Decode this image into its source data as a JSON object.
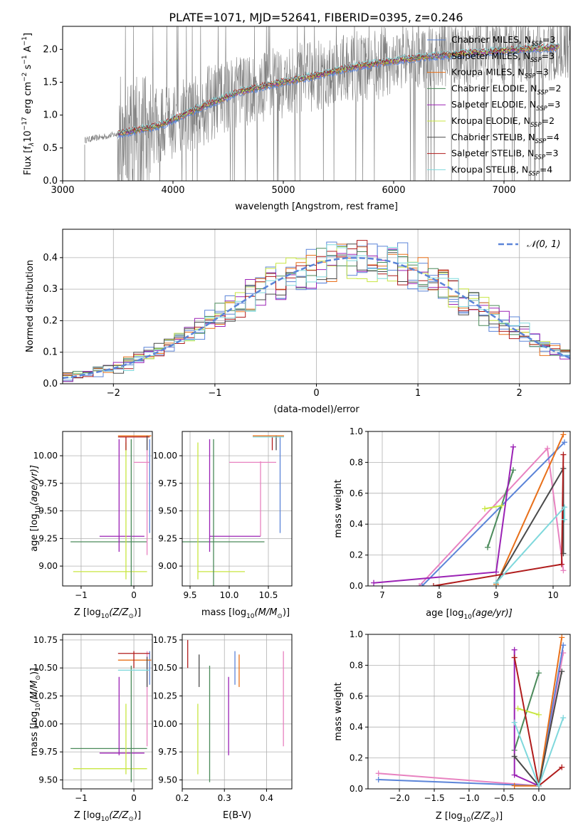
{
  "colors": {
    "Chabrier MILES": "#5b84d8",
    "Salpeter MILES": "#5b84d8",
    "Kroupa MILES": "#e8701a",
    "Chabrier ELODIE": "#4a8a5a",
    "Salpeter ELODIE": "#9b22b5",
    "Kroupa ELODIE": "#c8e640",
    "Chabrier STELIB": "#4a4a4a",
    "Salpeter STELIB": "#b01c1c",
    "Kroupa STELIB": "#7fd8dc",
    "pink": "#e882c0",
    "spectrum": "#7f7f7f",
    "gauss": "#5b84d8"
  },
  "chart_data": [
    {
      "id": "spectrum",
      "type": "line",
      "title": "PLATE=1071, MJD=52641, FIBERID=0395, z=0.246",
      "xlabel": "wavelength [Angstrom, rest frame]",
      "ylabel_main": "Flux [f",
      "ylabel_sub": "λ",
      "ylabel_rest": "10",
      "ylabel_exp1": "−17",
      "ylabel_mid": " erg cm",
      "ylabel_exp2": "−2",
      "ylabel_mid2": " s",
      "ylabel_exp3": "−1",
      "ylabel_mid3": " A",
      "ylabel_exp4": "−1",
      "ylabel_end": "]",
      "xlim": [
        3000,
        7600
      ],
      "ylim": [
        0,
        2.35
      ],
      "xticks": [
        3000,
        4000,
        5000,
        6000,
        7000
      ],
      "yticks": [
        0.0,
        0.5,
        1.0,
        1.5,
        2.0
      ],
      "continuum": [
        [
          3200,
          0.62
        ],
        [
          3400,
          0.68
        ],
        [
          3700,
          0.78
        ],
        [
          3900,
          0.85
        ],
        [
          4100,
          1.0
        ],
        [
          4300,
          1.15
        ],
        [
          4600,
          1.35
        ],
        [
          4850,
          1.45
        ],
        [
          5000,
          1.5
        ],
        [
          5300,
          1.6
        ],
        [
          5600,
          1.72
        ],
        [
          5900,
          1.8
        ],
        [
          6200,
          1.87
        ],
        [
          6600,
          1.93
        ],
        [
          7000,
          1.98
        ],
        [
          7400,
          2.02
        ],
        [
          7600,
          2.05
        ]
      ],
      "legend": [
        {
          "label": "Chabrier MILES, N",
          "sub": "SSP",
          "tail": "=3"
        },
        {
          "label": "Salpeter MILES, N",
          "sub": "SSP",
          "tail": "=3"
        },
        {
          "label": "Kroupa MILES, N",
          "sub": "SSP",
          "tail": "=3"
        },
        {
          "label": "Chabrier ELODIE, N",
          "sub": "SSP",
          "tail": "=2"
        },
        {
          "label": "Salpeter ELODIE, N",
          "sub": "SSP",
          "tail": "=3"
        },
        {
          "label": "Kroupa ELODIE, N",
          "sub": "SSP",
          "tail": "=2"
        },
        {
          "label": "Chabrier STELIB, N",
          "sub": "SSP",
          "tail": "=4"
        },
        {
          "label": "Salpeter STELIB, N",
          "sub": "SSP",
          "tail": "=3"
        },
        {
          "label": "Kroupa STELIB, N",
          "sub": "SSP",
          "tail": "=4"
        }
      ],
      "legend_placement": "right",
      "grid": false
    },
    {
      "id": "residuals",
      "type": "histogram",
      "xlabel": "(data-model)/error",
      "ylabel": "Normed distribution",
      "xlim": [
        -2.5,
        2.5
      ],
      "ylim": [
        0,
        0.49
      ],
      "xticks": [
        -2,
        -1,
        0,
        1,
        2
      ],
      "yticks": [
        0.0,
        0.1,
        0.2,
        0.3,
        0.4
      ],
      "legend": "𝒩(0, 1)",
      "legend_placement": "top-right",
      "grid": true,
      "bin_edges_start": -2.5,
      "bin_width": 0.1,
      "gauss_values": [
        0.018,
        0.022,
        0.028,
        0.034,
        0.041,
        0.049,
        0.058,
        0.069,
        0.081,
        0.095,
        0.11,
        0.126,
        0.144,
        0.163,
        0.182,
        0.203,
        0.224,
        0.246,
        0.266,
        0.287,
        0.306,
        0.324,
        0.341,
        0.356,
        0.369,
        0.381,
        0.39,
        0.395,
        0.399,
        0.399,
        0.398,
        0.395,
        0.39,
        0.381,
        0.369,
        0.356,
        0.341,
        0.324,
        0.306,
        0.287,
        0.266,
        0.246,
        0.224,
        0.203,
        0.182,
        0.163,
        0.144,
        0.126,
        0.11,
        0.095,
        0.081
      ]
    },
    {
      "id": "age_vs_Z",
      "type": "errorbar",
      "xlabel": "Z [log",
      "xlabel_sub": "10",
      "xlabel_tail": "(Z/Z",
      "xlabel_sun": "⊙",
      "xlabel_end": ")]",
      "ylabel": "age  [log",
      "ylabel_sub": "10",
      "ylabel_tail": "(age/yr)]",
      "xlim": [
        -1.35,
        0.35
      ],
      "ylim": [
        8.82,
        10.22
      ],
      "xticks": [
        -1,
        0
      ],
      "yticks": [
        9.0,
        9.25,
        9.5,
        9.75,
        10.0
      ]
    },
    {
      "id": "age_vs_mass",
      "type": "errorbar",
      "xlabel": "mass [log",
      "xlabel_sub": "10",
      "xlabel_tail": "(M/M",
      "xlabel_sun": "⊙",
      "xlabel_end": ")]",
      "xlim": [
        9.4,
        10.8
      ],
      "ylim": [
        8.82,
        10.22
      ],
      "xticks": [
        9.5,
        10.0,
        10.5
      ],
      "yticks": [
        9.0,
        9.25,
        9.5,
        9.75,
        10.0
      ]
    },
    {
      "id": "weight_vs_age",
      "type": "line",
      "xlabel": "age  [log",
      "xlabel_sub": "10",
      "xlabel_tail": "(age/yr)]",
      "ylabel": "mass weight",
      "xlim": [
        6.75,
        10.3
      ],
      "ylim": [
        0,
        1.0
      ],
      "xticks": [
        7,
        8,
        9,
        10
      ],
      "yticks": [
        0.0,
        0.2,
        0.4,
        0.6,
        0.8,
        1.0
      ],
      "grid": true,
      "series": [
        {
          "color": "#e882c0",
          "points": [
            [
              7.65,
              0.0
            ],
            [
              9.9,
              0.89
            ],
            [
              10.18,
              0.1
            ]
          ]
        },
        {
          "color": "#5b84d8",
          "points": [
            [
              7.7,
              0.0
            ],
            [
              10.2,
              0.93
            ]
          ]
        },
        {
          "color": "#e8701a",
          "points": [
            [
              9.0,
              0.01
            ],
            [
              10.18,
              0.98
            ]
          ]
        },
        {
          "color": "#4a8a5a",
          "points": [
            [
              8.85,
              0.25
            ],
            [
              9.3,
              0.75
            ]
          ]
        },
        {
          "color": "#9b22b5",
          "points": [
            [
              6.85,
              0.02
            ],
            [
              9.0,
              0.09
            ],
            [
              9.3,
              0.9
            ]
          ]
        },
        {
          "color": "#c8e640",
          "points": [
            [
              8.8,
              0.5
            ],
            [
              9.1,
              0.52
            ]
          ]
        },
        {
          "color": "#4a4a4a",
          "points": [
            [
              9.0,
              0.02
            ],
            [
              10.18,
              0.76
            ],
            [
              10.18,
              0.21
            ]
          ]
        },
        {
          "color": "#b01c1c",
          "points": [
            [
              7.9,
              0.0
            ],
            [
              10.15,
              0.14
            ],
            [
              10.18,
              0.85
            ]
          ]
        },
        {
          "color": "#7fd8dc",
          "points": [
            [
              9.0,
              0.02
            ],
            [
              10.2,
              0.51
            ],
            [
              10.2,
              0.43
            ]
          ]
        }
      ]
    },
    {
      "id": "mass_vs_Z",
      "type": "errorbar",
      "xlabel": "Z [log",
      "xlabel_sub": "10",
      "xlabel_tail": "(Z/Z",
      "xlabel_sun": "⊙",
      "xlabel_end": ")]",
      "ylabel": "mass [log",
      "ylabel_sub": "10",
      "ylabel_tail": "(M/M",
      "ylabel_sun": "⊙",
      "ylabel_end": ")]",
      "xlim": [
        -1.35,
        0.35
      ],
      "ylim": [
        9.42,
        10.8
      ],
      "xticks": [
        -1,
        0
      ],
      "yticks": [
        9.5,
        9.75,
        10.0,
        10.25,
        10.5,
        10.75
      ]
    },
    {
      "id": "mass_vs_ebv",
      "type": "errorbar",
      "xlabel": "E(B-V)",
      "xlim": [
        0.2,
        0.46
      ],
      "ylim": [
        9.42,
        10.8
      ],
      "xticks": [
        0.2,
        0.3,
        0.4
      ],
      "yticks": [
        9.5,
        9.75,
        10.0,
        10.25,
        10.5,
        10.75
      ]
    },
    {
      "id": "weight_vs_Z",
      "type": "line",
      "xlabel": "Z [log",
      "xlabel_sub": "10",
      "xlabel_tail": "(Z/Z",
      "xlabel_sun": "⊙",
      "xlabel_end": ")]",
      "ylabel": "mass weight",
      "xlim": [
        -2.45,
        0.45
      ],
      "ylim": [
        0,
        1.0
      ],
      "xticks": [
        -2.0,
        -1.5,
        -1.0,
        -0.5,
        0.0
      ],
      "yticks": [
        0.0,
        0.2,
        0.4,
        0.6,
        0.8,
        1.0
      ],
      "grid": true,
      "series": [
        {
          "color": "#e882c0",
          "points": [
            [
              -2.3,
              0.1
            ],
            [
              0.0,
              0.02
            ],
            [
              0.35,
              0.88
            ]
          ]
        },
        {
          "color": "#5b84d8",
          "points": [
            [
              -2.3,
              0.06
            ],
            [
              0.0,
              0.02
            ],
            [
              0.35,
              0.93
            ]
          ]
        },
        {
          "color": "#e8701a",
          "points": [
            [
              -0.35,
              0.02
            ],
            [
              0.0,
              0.02
            ],
            [
              0.33,
              0.98
            ]
          ]
        },
        {
          "color": "#4a8a5a",
          "points": [
            [
              -0.35,
              0.25
            ],
            [
              0.0,
              0.75
            ]
          ]
        },
        {
          "color": "#9b22b5",
          "points": [
            [
              -0.35,
              0.9
            ],
            [
              -0.35,
              0.09
            ],
            [
              0.0,
              0.02
            ]
          ]
        },
        {
          "color": "#c8e640",
          "points": [
            [
              -0.3,
              0.52
            ],
            [
              0.0,
              0.48
            ]
          ]
        },
        {
          "color": "#4a4a4a",
          "points": [
            [
              -0.35,
              0.21
            ],
            [
              0.0,
              0.02
            ],
            [
              0.33,
              0.76
            ]
          ]
        },
        {
          "color": "#b01c1c",
          "points": [
            [
              -0.35,
              0.85
            ],
            [
              0.0,
              0.02
            ],
            [
              0.33,
              0.14
            ]
          ]
        },
        {
          "color": "#7fd8dc",
          "points": [
            [
              -0.35,
              0.43
            ],
            [
              0.0,
              0.02
            ],
            [
              0.35,
              0.46
            ]
          ]
        }
      ]
    }
  ]
}
